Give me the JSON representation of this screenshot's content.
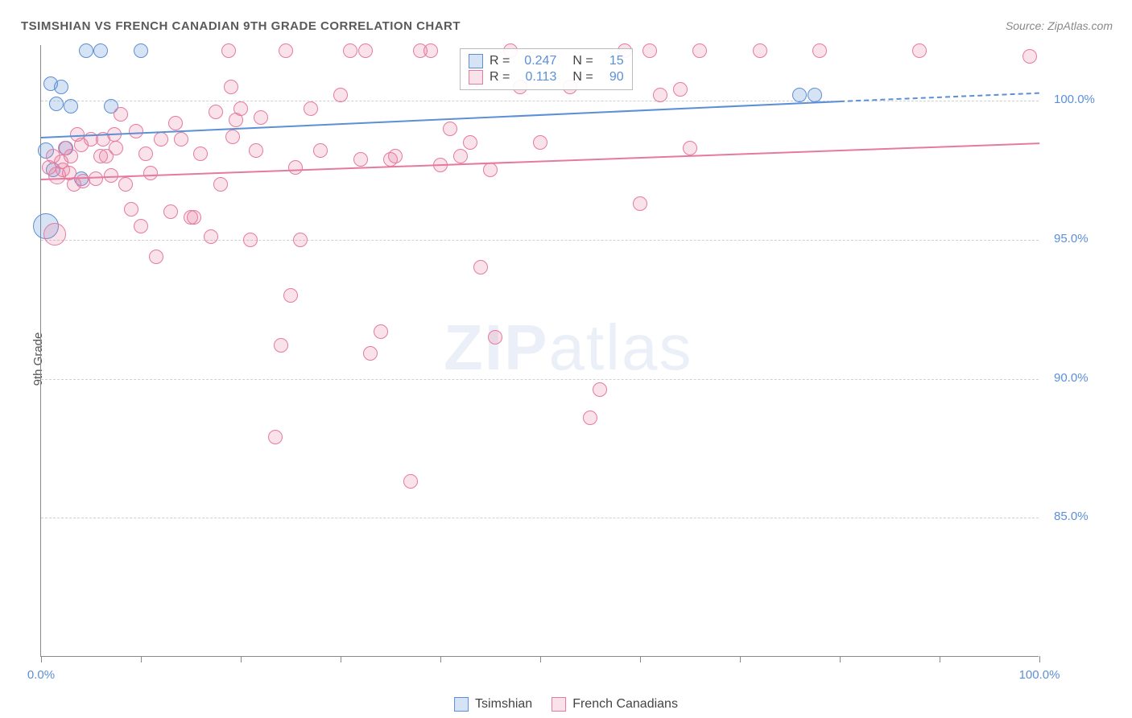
{
  "title": "TSIMSHIAN VS FRENCH CANADIAN 9TH GRADE CORRELATION CHART",
  "source_label": "Source: ZipAtlas.com",
  "y_axis_label": "9th Grade",
  "watermark": {
    "bold": "ZIP",
    "light": "atlas"
  },
  "chart": {
    "type": "scatter",
    "background_color": "#ffffff",
    "grid_color": "#d0d0d0",
    "axis_color": "#888888",
    "xlim": [
      0,
      100
    ],
    "ylim": [
      80,
      102
    ],
    "y_ticks": [
      85.0,
      90.0,
      95.0,
      100.0
    ],
    "y_tick_format": "%.1f%%",
    "x_ticks": [
      0,
      10,
      20,
      30,
      40,
      50,
      60,
      70,
      80,
      90,
      100
    ],
    "x_tick_labels_shown": [
      0,
      100
    ],
    "x_tick_format": "%.1f%%",
    "label_fontsize": 15,
    "tick_color": "#5b8fd6",
    "point_radius": 9,
    "point_opacity": 0.35,
    "series": [
      {
        "name": "Tsimshian",
        "color": "#5b8fd6",
        "fill": "rgba(91,143,214,0.25)",
        "stroke": "#5b8fd6",
        "R": "0.247",
        "N": "15",
        "trend": {
          "x1": 0,
          "y1": 98.7,
          "x2": 80,
          "y2": 100.0,
          "dash_from_x": 80,
          "x3": 100,
          "y3": 100.3
        },
        "points": [
          {
            "x": 0.5,
            "y": 98.2,
            "r": 10
          },
          {
            "x": 0.5,
            "y": 95.5,
            "r": 16
          },
          {
            "x": 1.2,
            "y": 97.5,
            "r": 9
          },
          {
            "x": 1.5,
            "y": 99.9,
            "r": 9
          },
          {
            "x": 2.5,
            "y": 98.3,
            "r": 9
          },
          {
            "x": 3.0,
            "y": 99.8,
            "r": 9
          },
          {
            "x": 4.5,
            "y": 101.8,
            "r": 9
          },
          {
            "x": 6.0,
            "y": 101.8,
            "r": 9
          },
          {
            "x": 7.0,
            "y": 99.8,
            "r": 9
          },
          {
            "x": 10.0,
            "y": 101.8,
            "r": 9
          },
          {
            "x": 1.0,
            "y": 100.6,
            "r": 9
          },
          {
            "x": 2.0,
            "y": 100.5,
            "r": 9
          },
          {
            "x": 76.0,
            "y": 100.2,
            "r": 9
          },
          {
            "x": 77.5,
            "y": 100.2,
            "r": 9
          },
          {
            "x": 4.0,
            "y": 97.2,
            "r": 9
          }
        ]
      },
      {
        "name": "French Canadians",
        "color": "#e67a9e",
        "fill": "rgba(230,122,158,0.22)",
        "stroke": "#e67a9e",
        "R": "0.113",
        "N": "90",
        "trend": {
          "x1": 0,
          "y1": 97.2,
          "x2": 100,
          "y2": 98.5
        },
        "points": [
          {
            "x": 0.8,
            "y": 97.6,
            "r": 9
          },
          {
            "x": 1.2,
            "y": 98.0,
            "r": 9
          },
          {
            "x": 1.4,
            "y": 95.2,
            "r": 14
          },
          {
            "x": 1.6,
            "y": 97.3,
            "r": 11
          },
          {
            "x": 2.0,
            "y": 97.8,
            "r": 9
          },
          {
            "x": 2.2,
            "y": 97.5,
            "r": 9
          },
          {
            "x": 2.4,
            "y": 98.3,
            "r": 9
          },
          {
            "x": 2.8,
            "y": 97.4,
            "r": 9
          },
          {
            "x": 3.0,
            "y": 98.0,
            "r": 9
          },
          {
            "x": 3.3,
            "y": 97.0,
            "r": 9
          },
          {
            "x": 3.6,
            "y": 98.8,
            "r": 9
          },
          {
            "x": 4.0,
            "y": 98.4,
            "r": 9
          },
          {
            "x": 4.2,
            "y": 97.1,
            "r": 9
          },
          {
            "x": 5.0,
            "y": 98.6,
            "r": 9
          },
          {
            "x": 5.5,
            "y": 97.2,
            "r": 9
          },
          {
            "x": 6.0,
            "y": 98.0,
            "r": 9
          },
          {
            "x": 6.2,
            "y": 98.6,
            "r": 9
          },
          {
            "x": 6.5,
            "y": 98.0,
            "r": 9
          },
          {
            "x": 7.0,
            "y": 97.3,
            "r": 9
          },
          {
            "x": 7.3,
            "y": 98.8,
            "r": 9
          },
          {
            "x": 7.5,
            "y": 98.3,
            "r": 9
          },
          {
            "x": 8.0,
            "y": 99.5,
            "r": 9
          },
          {
            "x": 8.5,
            "y": 97.0,
            "r": 9
          },
          {
            "x": 9.0,
            "y": 96.1,
            "r": 9
          },
          {
            "x": 9.5,
            "y": 98.9,
            "r": 9
          },
          {
            "x": 10.0,
            "y": 95.5,
            "r": 9
          },
          {
            "x": 10.5,
            "y": 98.1,
            "r": 9
          },
          {
            "x": 11.0,
            "y": 97.4,
            "r": 9
          },
          {
            "x": 12.0,
            "y": 98.6,
            "r": 9
          },
          {
            "x": 13.0,
            "y": 96.0,
            "r": 9
          },
          {
            "x": 13.5,
            "y": 99.2,
            "r": 9
          },
          {
            "x": 14.0,
            "y": 98.6,
            "r": 9
          },
          {
            "x": 15.0,
            "y": 95.8,
            "r": 9
          },
          {
            "x": 15.3,
            "y": 95.8,
            "r": 9
          },
          {
            "x": 16.0,
            "y": 98.1,
            "r": 9
          },
          {
            "x": 17.0,
            "y": 95.1,
            "r": 9
          },
          {
            "x": 17.5,
            "y": 99.6,
            "r": 9
          },
          {
            "x": 18.0,
            "y": 97.0,
            "r": 9
          },
          {
            "x": 18.8,
            "y": 101.8,
            "r": 9
          },
          {
            "x": 19.0,
            "y": 100.5,
            "r": 9
          },
          {
            "x": 19.2,
            "y": 98.7,
            "r": 9
          },
          {
            "x": 19.5,
            "y": 99.3,
            "r": 9
          },
          {
            "x": 20.0,
            "y": 99.7,
            "r": 9
          },
          {
            "x": 21.0,
            "y": 95.0,
            "r": 9
          },
          {
            "x": 21.5,
            "y": 98.2,
            "r": 9
          },
          {
            "x": 22.0,
            "y": 99.4,
            "r": 9
          },
          {
            "x": 23.5,
            "y": 87.9,
            "r": 9
          },
          {
            "x": 24.0,
            "y": 91.2,
            "r": 9
          },
          {
            "x": 24.5,
            "y": 101.8,
            "r": 9
          },
          {
            "x": 25.0,
            "y": 93.0,
            "r": 9
          },
          {
            "x": 25.5,
            "y": 97.6,
            "r": 9
          },
          {
            "x": 26.0,
            "y": 95.0,
            "r": 9
          },
          {
            "x": 27.0,
            "y": 99.7,
            "r": 9
          },
          {
            "x": 28.0,
            "y": 98.2,
            "r": 9
          },
          {
            "x": 30.0,
            "y": 100.2,
            "r": 9
          },
          {
            "x": 31.0,
            "y": 101.8,
            "r": 9
          },
          {
            "x": 32.0,
            "y": 97.9,
            "r": 9
          },
          {
            "x": 32.5,
            "y": 101.8,
            "r": 9
          },
          {
            "x": 33.0,
            "y": 90.9,
            "r": 9
          },
          {
            "x": 34.0,
            "y": 91.7,
            "r": 9
          },
          {
            "x": 35.0,
            "y": 97.9,
            "r": 9
          },
          {
            "x": 35.5,
            "y": 98.0,
            "r": 9
          },
          {
            "x": 37.0,
            "y": 86.3,
            "r": 9
          },
          {
            "x": 38.0,
            "y": 101.8,
            "r": 9
          },
          {
            "x": 39.0,
            "y": 101.8,
            "r": 9
          },
          {
            "x": 40.0,
            "y": 97.7,
            "r": 9
          },
          {
            "x": 41.0,
            "y": 99.0,
            "r": 9
          },
          {
            "x": 42.0,
            "y": 98.0,
            "r": 9
          },
          {
            "x": 43.0,
            "y": 98.5,
            "r": 9
          },
          {
            "x": 44.0,
            "y": 94.0,
            "r": 9
          },
          {
            "x": 45.0,
            "y": 97.5,
            "r": 9
          },
          {
            "x": 45.5,
            "y": 91.5,
            "r": 9
          },
          {
            "x": 47.0,
            "y": 101.8,
            "r": 9
          },
          {
            "x": 48.0,
            "y": 100.5,
            "r": 9
          },
          {
            "x": 53.0,
            "y": 100.5,
            "r": 9
          },
          {
            "x": 55.0,
            "y": 88.6,
            "r": 9
          },
          {
            "x": 56.0,
            "y": 89.6,
            "r": 9
          },
          {
            "x": 58.5,
            "y": 101.8,
            "r": 9
          },
          {
            "x": 60.0,
            "y": 96.3,
            "r": 9
          },
          {
            "x": 61.0,
            "y": 101.8,
            "r": 9
          },
          {
            "x": 62.0,
            "y": 100.2,
            "r": 9
          },
          {
            "x": 64.0,
            "y": 100.4,
            "r": 9
          },
          {
            "x": 65.0,
            "y": 98.3,
            "r": 9
          },
          {
            "x": 66.0,
            "y": 101.8,
            "r": 9
          },
          {
            "x": 72.0,
            "y": 101.8,
            "r": 9
          },
          {
            "x": 78.0,
            "y": 101.8,
            "r": 9
          },
          {
            "x": 88.0,
            "y": 101.8,
            "r": 9
          },
          {
            "x": 99.0,
            "y": 101.6,
            "r": 9
          },
          {
            "x": 50.0,
            "y": 98.5,
            "r": 9
          },
          {
            "x": 11.5,
            "y": 94.4,
            "r": 9
          }
        ]
      }
    ]
  },
  "legend": {
    "items": [
      {
        "label": "Tsimshian",
        "fill": "rgba(91,143,214,0.25)",
        "stroke": "#5b8fd6"
      },
      {
        "label": "French Canadians",
        "fill": "rgba(230,122,158,0.22)",
        "stroke": "#e67a9e"
      }
    ]
  }
}
